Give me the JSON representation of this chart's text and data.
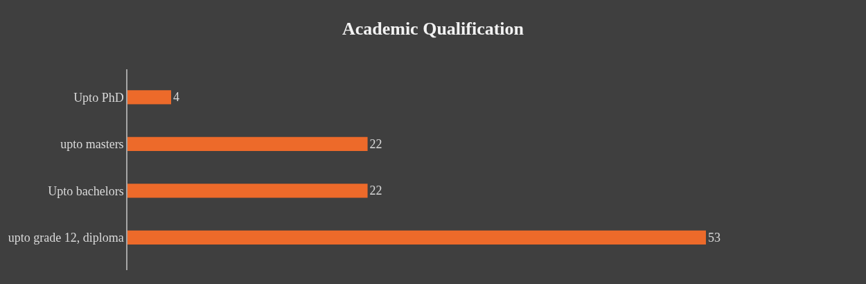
{
  "chart_data": {
    "type": "bar",
    "title": "Academic Qualification",
    "orientation": "horizontal",
    "categories": [
      "Upto PhD",
      "upto masters",
      "Upto bachelors",
      "upto grade 12, diploma"
    ],
    "values": [
      4,
      22,
      22,
      53
    ],
    "color": "#ed6a2a",
    "data_labels": true
  }
}
